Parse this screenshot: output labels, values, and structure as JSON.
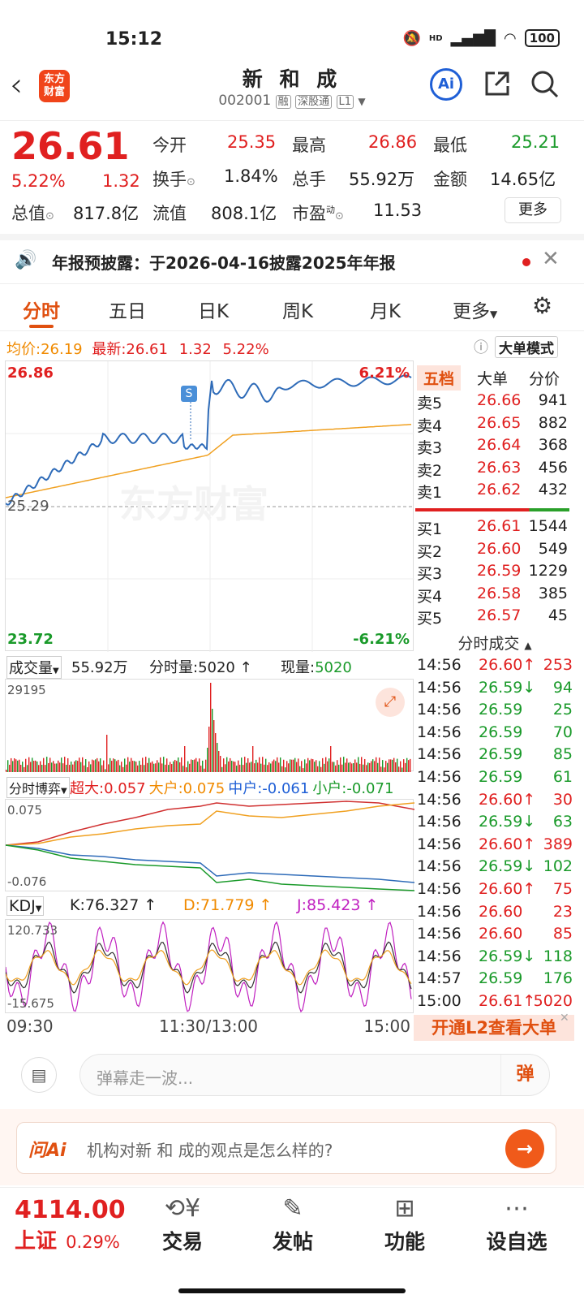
{
  "status": {
    "time": "15:12",
    "signal": "HD",
    "battery": "100"
  },
  "header": {
    "logo": "东方财富",
    "name": "新 和 成",
    "code": "002001",
    "tags": [
      "融",
      "深股通",
      "L1"
    ]
  },
  "quote": {
    "price": "26.61",
    "pct": "5.22%",
    "chg": "1.32",
    "rows": [
      [
        {
          "label": "今开",
          "value": "25.35",
          "color": "red"
        },
        {
          "label": "最高",
          "value": "26.86",
          "color": "red"
        },
        {
          "label": "最低",
          "value": "25.21",
          "color": "green"
        }
      ],
      [
        {
          "label": "换手",
          "value": "1.84%",
          "color": "black"
        },
        {
          "label": "总手",
          "value": "55.92万",
          "color": "black"
        },
        {
          "label": "金额",
          "value": "14.65亿",
          "color": "black"
        }
      ],
      [
        {
          "label": "总值",
          "value": "817.8亿",
          "color": "black"
        },
        {
          "label": "流值",
          "value": "808.1亿",
          "color": "black"
        },
        {
          "label": "市盈",
          "value": "11.53",
          "color": "black"
        }
      ]
    ],
    "pe_sup": "动",
    "more_label": "更多"
  },
  "notice": {
    "text": "年报预披露：于2026-04-16披露2025年年报"
  },
  "tabs": [
    "分时",
    "五日",
    "日K",
    "周K",
    "月K",
    "更多"
  ],
  "infoline": {
    "avg_label": "均价:",
    "avg": "26.19",
    "latest_label": "最新:",
    "latest": "26.61",
    "chg": "1.32",
    "pct": "5.22%",
    "mode_button": "大单模式"
  },
  "intraday": {
    "high_price": "26.86",
    "high_pct": "6.21%",
    "prev_close": "25.29",
    "low_price": "23.72",
    "low_pct": "-6.21%",
    "marker": "S",
    "watermark": "东方财富",
    "colors": {
      "price": "#2e6bb8",
      "avg": "#f0a020"
    }
  },
  "volume": {
    "label": "成交量",
    "total": "55.92万",
    "min_label": "分时量:",
    "min_value": "5020",
    "now_label": "现量:",
    "now_value": "5020",
    "max": "29195"
  },
  "moneyflow": {
    "label": "分时博弈",
    "items": [
      {
        "name": "超大:",
        "value": "0.057",
        "color": "#e02020"
      },
      {
        "name": "大户:",
        "value": "0.075",
        "color": "#f08a00"
      },
      {
        "name": "中户:",
        "value": "-0.061",
        "color": "#1f5fd6"
      },
      {
        "name": "小户:",
        "value": "-0.071",
        "color": "#1a9a2a"
      }
    ],
    "top": "0.075",
    "bottom": "-0.076"
  },
  "kdj": {
    "label": "KDJ",
    "k": "K:76.327",
    "d": "D:71.779",
    "j": "J:85.423",
    "top": "120.733",
    "bottom": "-15.675"
  },
  "time_axis": [
    "09:30",
    "11:30/13:00",
    "15:00"
  ],
  "orderbook": {
    "tabs": [
      "五档",
      "大单",
      "分价"
    ],
    "asks": [
      {
        "label": "卖5",
        "price": "26.66",
        "vol": "941"
      },
      {
        "label": "卖4",
        "price": "26.65",
        "vol": "882"
      },
      {
        "label": "卖3",
        "price": "26.64",
        "vol": "368"
      },
      {
        "label": "卖2",
        "price": "26.63",
        "vol": "456"
      },
      {
        "label": "卖1",
        "price": "26.62",
        "vol": "432"
      }
    ],
    "bids": [
      {
        "label": "买1",
        "price": "26.61",
        "vol": "1544"
      },
      {
        "label": "买2",
        "price": "26.60",
        "vol": "549"
      },
      {
        "label": "买3",
        "price": "26.59",
        "vol": "1229"
      },
      {
        "label": "买4",
        "price": "26.58",
        "vol": "385"
      },
      {
        "label": "买5",
        "price": "26.57",
        "vol": "45"
      }
    ]
  },
  "trades": {
    "title": "分时成交",
    "rows": [
      {
        "t": "14:56",
        "p": "26.60↑",
        "v": "253",
        "c": "red"
      },
      {
        "t": "14:56",
        "p": "26.59↓",
        "v": "94",
        "c": "green"
      },
      {
        "t": "14:56",
        "p": "26.59",
        "v": "25",
        "c": "green"
      },
      {
        "t": "14:56",
        "p": "26.59",
        "v": "70",
        "c": "green"
      },
      {
        "t": "14:56",
        "p": "26.59",
        "v": "85",
        "c": "green"
      },
      {
        "t": "14:56",
        "p": "26.59",
        "v": "61",
        "c": "green"
      },
      {
        "t": "14:56",
        "p": "26.60↑",
        "v": "30",
        "c": "red"
      },
      {
        "t": "14:56",
        "p": "26.59↓",
        "v": "63",
        "c": "green"
      },
      {
        "t": "14:56",
        "p": "26.60↑",
        "v": "389",
        "c": "red"
      },
      {
        "t": "14:56",
        "p": "26.59↓",
        "v": "102",
        "c": "green"
      },
      {
        "t": "14:56",
        "p": "26.60↑",
        "v": "75",
        "c": "red"
      },
      {
        "t": "14:56",
        "p": "26.60",
        "v": "23",
        "c": "red"
      },
      {
        "t": "14:56",
        "p": "26.60",
        "v": "85",
        "c": "red"
      },
      {
        "t": "14:56",
        "p": "26.59↓",
        "v": "118",
        "c": "green"
      },
      {
        "t": "14:57",
        "p": "26.59",
        "v": "176",
        "c": "green"
      },
      {
        "t": "15:00",
        "p": "26.61↑",
        "v": "5020",
        "c": "red"
      }
    ],
    "l2_banner": "开通L2查看大单"
  },
  "danmu": {
    "placeholder": "弹幕走一波...",
    "button": "弹"
  },
  "askai": {
    "logo": "问Ai",
    "question": "机构对新 和 成的观点是怎么样的?"
  },
  "bottomnav": {
    "index_value": "4114.00",
    "index_name": "上证",
    "index_pct": "0.29%",
    "items": [
      "交易",
      "发帖",
      "功能",
      "设自选"
    ]
  }
}
